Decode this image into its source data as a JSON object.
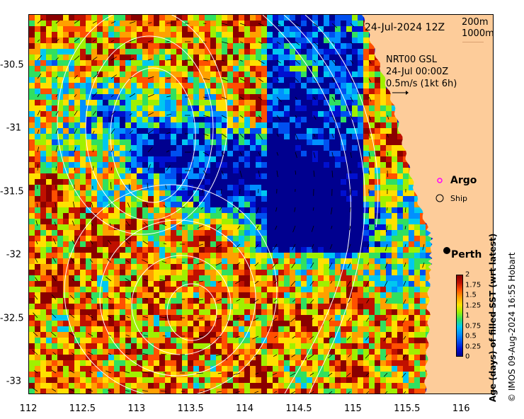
{
  "map": {
    "date_label": "24-Jul-2024 12Z",
    "depth_labels": [
      "200m",
      "1000m"
    ],
    "current_source": "NRT00 GSL",
    "current_time": "24-Jul 00:00Z",
    "current_scale": "0.5m/s (1kt 6h)",
    "legend": {
      "argo": "Argo",
      "ship": "Ship"
    },
    "city": "Perth",
    "colors": {
      "land": "#fdcc9a",
      "ocean_palette": [
        "#00008f",
        "#0010d0",
        "#0050f0",
        "#0090ff",
        "#00c8f0",
        "#30e060",
        "#a0f000",
        "#ffe000",
        "#ffa000",
        "#ff5000",
        "#c01000",
        "#8a0000"
      ],
      "contour": "#ffffff",
      "argo_marker": "#ff00ff"
    }
  },
  "axes": {
    "x_ticks": [
      "112",
      "112.5",
      "113",
      "113.5",
      "114",
      "114.5",
      "115",
      "115.5",
      "116"
    ],
    "y_ticks": [
      "-30.5",
      "-31",
      "-31.5",
      "-32",
      "-32.5",
      "-33"
    ],
    "x_range": [
      112,
      116.3
    ],
    "y_range": [
      -30.1,
      -33.1
    ]
  },
  "colorbar": {
    "title": "Age (days) of filled SST (wrt latest)",
    "ticks": [
      "2",
      "1.75",
      "1.5",
      "1.25",
      "1",
      "0.75",
      "0.5",
      "0.25",
      "0"
    ],
    "range": [
      0,
      2
    ]
  },
  "credit": "© IMOS 09-Aug-2024 16:55 Hobart"
}
